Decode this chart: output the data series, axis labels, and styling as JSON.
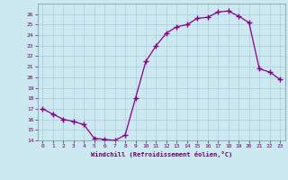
{
  "x": [
    0,
    1,
    2,
    3,
    4,
    5,
    6,
    7,
    8,
    9,
    10,
    11,
    12,
    13,
    14,
    15,
    16,
    17,
    18,
    19,
    20,
    21,
    22,
    23
  ],
  "y": [
    17.0,
    16.5,
    16.0,
    15.8,
    15.5,
    14.2,
    14.1,
    14.0,
    14.5,
    18.0,
    21.5,
    23.0,
    24.2,
    24.8,
    25.0,
    25.6,
    25.7,
    26.2,
    26.3,
    25.8,
    25.2,
    20.8,
    20.5,
    19.8
  ],
  "line_color": "#880088",
  "marker": "+",
  "marker_size": 4,
  "bg_color": "#cce8f0",
  "grid_color": "#aaccdd",
  "xlabel": "Windchill (Refroidissement éolien,°C)",
  "xlabel_color": "#660066",
  "tick_color": "#660066",
  "ylim": [
    14,
    27
  ],
  "xlim": [
    -0.5,
    23.5
  ],
  "yticks": [
    14,
    15,
    16,
    17,
    18,
    19,
    20,
    21,
    22,
    23,
    24,
    25,
    26
  ],
  "xticks": [
    0,
    1,
    2,
    3,
    4,
    5,
    6,
    7,
    8,
    9,
    10,
    11,
    12,
    13,
    14,
    15,
    16,
    17,
    18,
    19,
    20,
    21,
    22,
    23
  ]
}
